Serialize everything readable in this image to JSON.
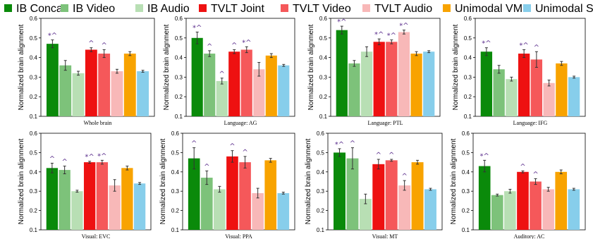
{
  "colors": {
    "IB Concat": "#0a8a0a",
    "IB Video": "#7dc27a",
    "IB Audio": "#b8dfb4",
    "TVLT Joint": "#ee1111",
    "TVLT Video": "#f5585a",
    "TVLT Audio": "#f8b8b8",
    "Unimodal VM": "#f8a300",
    "Unimodal SM": "#87ceeb"
  },
  "chart_data": {
    "type": "bar",
    "legend": [
      "IB Concat",
      "IB Video",
      "IB Audio",
      "TVLT Joint",
      "TVLT Video",
      "TVLT Audio",
      "Unimodal VM",
      "Unimodal SM"
    ],
    "ylabel": "Normalized brain alignment",
    "yticks": [
      "0.1",
      "0.2",
      "0.3",
      "0.4",
      "0.5",
      "0.6"
    ],
    "ylim": [
      0.1,
      0.6
    ],
    "legend_position": "top",
    "panels": [
      {
        "title": "Whole brain",
        "values": [
          0.47,
          0.36,
          0.32,
          0.44,
          0.42,
          0.33,
          0.42,
          0.33
        ],
        "errors": [
          0.02,
          0.025,
          0.01,
          0.01,
          0.02,
          0.01,
          0.01,
          0.005
        ],
        "marks": [
          "*^",
          "",
          "",
          "^",
          "^",
          "",
          "",
          ""
        ]
      },
      {
        "title": "Language: AG",
        "values": [
          0.5,
          0.42,
          0.28,
          0.43,
          0.44,
          0.34,
          0.41,
          0.36
        ],
        "errors": [
          0.03,
          0.015,
          0.015,
          0.01,
          0.015,
          0.035,
          0.01,
          0.005
        ],
        "marks": [
          "*^",
          "^",
          "^",
          "^",
          "*^",
          "",
          "",
          ""
        ]
      },
      {
        "title": "Language: PTL",
        "values": [
          0.54,
          0.37,
          0.43,
          0.48,
          0.48,
          0.53,
          0.42,
          0.43
        ],
        "errors": [
          0.02,
          0.015,
          0.025,
          0.015,
          0.01,
          0.01,
          0.01,
          0.005
        ],
        "marks": [
          "*^",
          "",
          "",
          "*^",
          "*^",
          "*^",
          "",
          ""
        ]
      },
      {
        "title": "Language: IFG",
        "values": [
          0.43,
          0.34,
          0.29,
          0.42,
          0.39,
          0.27,
          0.37,
          0.3
        ],
        "errors": [
          0.02,
          0.02,
          0.01,
          0.02,
          0.04,
          0.015,
          0.01,
          0.005
        ],
        "marks": [
          "*^",
          "",
          "",
          "*^",
          "^",
          "",
          "",
          ""
        ]
      },
      {
        "title": "Visual: EVC",
        "values": [
          0.42,
          0.41,
          0.3,
          0.45,
          0.45,
          0.33,
          0.42,
          0.34
        ],
        "errors": [
          0.025,
          0.02,
          0.005,
          0.005,
          0.01,
          0.03,
          0.01,
          0.005
        ],
        "marks": [
          "^",
          "^",
          "",
          "*^",
          "*^",
          "",
          "",
          ""
        ]
      },
      {
        "title": "Visual: PPA",
        "values": [
          0.47,
          0.37,
          0.31,
          0.48,
          0.45,
          0.29,
          0.46,
          0.29
        ],
        "errors": [
          0.055,
          0.035,
          0.015,
          0.03,
          0.03,
          0.025,
          0.01,
          0.005
        ],
        "marks": [
          "^",
          "^",
          "",
          "^",
          "^",
          "",
          "",
          ""
        ]
      },
      {
        "title": "Visual: MT",
        "values": [
          0.5,
          0.47,
          0.26,
          0.44,
          0.46,
          0.33,
          0.45,
          0.31
        ],
        "errors": [
          0.02,
          0.055,
          0.025,
          0.025,
          0.005,
          0.025,
          0.01,
          0.005
        ],
        "marks": [
          "*^",
          "^",
          "",
          "^",
          "^",
          "^",
          "",
          ""
        ]
      },
      {
        "title": "Auditory: AC",
        "values": [
          0.43,
          0.28,
          0.3,
          0.4,
          0.35,
          0.31,
          0.4,
          0.31
        ],
        "errors": [
          0.03,
          0.005,
          0.01,
          0.005,
          0.015,
          0.01,
          0.01,
          0.005
        ],
        "marks": [
          "*^",
          "",
          "",
          "^",
          "^",
          "",
          "",
          ""
        ]
      }
    ]
  }
}
